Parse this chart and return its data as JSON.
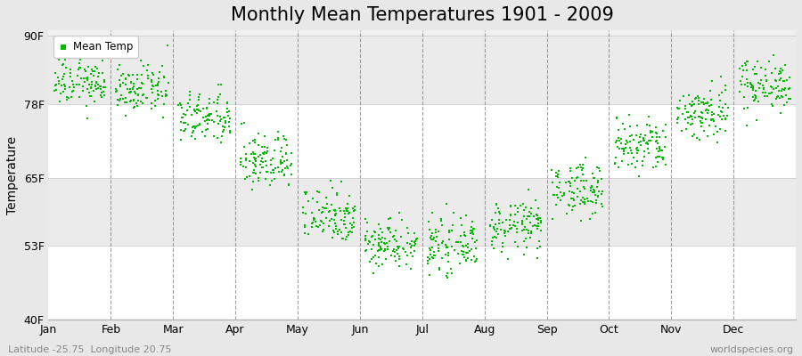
{
  "title": "Monthly Mean Temperatures 1901 - 2009",
  "ylabel": "Temperature",
  "yticks": [
    40,
    53,
    65,
    78,
    90
  ],
  "ytick_labels": [
    "40F",
    "53F",
    "65F",
    "78F",
    "90F"
  ],
  "ylim": [
    40,
    91
  ],
  "months": [
    "Jan",
    "Feb",
    "Mar",
    "Apr",
    "May",
    "Jun",
    "Jul",
    "Aug",
    "Sep",
    "Oct",
    "Nov",
    "Dec"
  ],
  "mean_temps_F": [
    82.0,
    80.5,
    75.5,
    68.0,
    58.5,
    53.5,
    53.0,
    56.5,
    63.0,
    70.5,
    76.5,
    81.5
  ],
  "background_color": "#E8E8E8",
  "plot_bg_color": "#F0F0F0",
  "band_colors": [
    "#FFFFFF",
    "#EBEBEB"
  ],
  "legend_label": "Mean Temp",
  "footer_left": "Latitude -25.75  Longitude 20.75",
  "footer_right": "worldspecies.org",
  "n_years": 109,
  "spreads_sd": [
    2.2,
    2.0,
    2.3,
    2.5,
    2.5,
    2.2,
    2.2,
    2.2,
    2.3,
    2.5,
    2.5,
    2.3
  ],
  "title_fontsize": 15,
  "axis_label_fontsize": 10,
  "tick_fontsize": 9,
  "footer_fontsize": 8,
  "marker_size": 3,
  "dot_color": "#00BB00",
  "dashed_line_color": "#888888",
  "gridline_color": "#CCCCCC"
}
